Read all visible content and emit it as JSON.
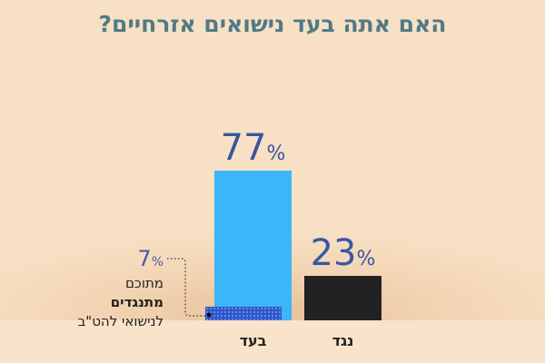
{
  "title": "האם אתה בעד נישואים אזרחיים?",
  "chart_data": {
    "type": "bar",
    "title": "האם אתה בעד נישואים אזרחיים?",
    "categories": [
      "בעד",
      "נגד"
    ],
    "values": [
      77,
      23
    ],
    "value_labels": [
      "77",
      "23"
    ],
    "percent_sign": "%",
    "colors": [
      "#3bb6f8",
      "#222222"
    ],
    "ylim": [
      0,
      100
    ],
    "annotation": {
      "category": "בעד",
      "value": 7,
      "value_label": "7",
      "lines": [
        "מתוכם",
        "מתנגדים",
        "לנישואי להט\"ב"
      ],
      "color": "#2f55c8"
    }
  }
}
